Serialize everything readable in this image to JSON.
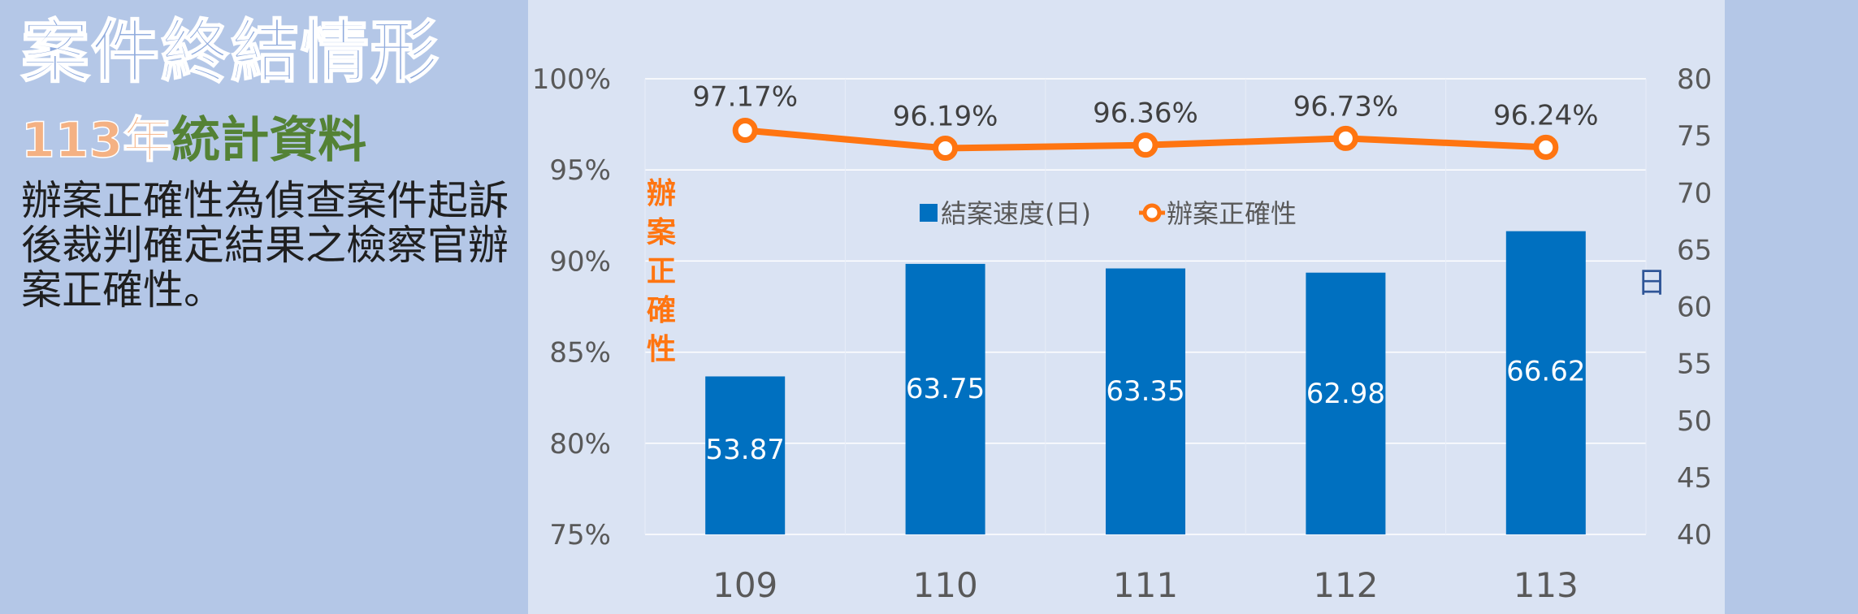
{
  "page": {
    "title": "案件終結情形",
    "subtitle_year": "113年",
    "subtitle_rest": "統計資料",
    "description": "辦案正確性為偵查案件起訴後裁判確定結果之檢察官辦案正確性。"
  },
  "colors": {
    "bar": "#0070c0",
    "line": "#ff7511",
    "title": "#8faadc",
    "subtitle_year": "#f4b183",
    "subtitle_rest": "#548235",
    "left_axis_title": "#ff7511",
    "right_axis_title": "#2f5597"
  },
  "chart_data": {
    "type": "bar",
    "categories": [
      "109",
      "110",
      "111",
      "112",
      "113"
    ],
    "series": [
      {
        "name": "結案速度(日)",
        "type": "bar",
        "axis": "right",
        "values": [
          53.87,
          63.75,
          63.35,
          62.98,
          66.62
        ],
        "labels": [
          "53.87",
          "63.75",
          "63.35",
          "62.98",
          "66.62"
        ]
      },
      {
        "name": "辦案正確性",
        "type": "line",
        "axis": "left",
        "values": [
          97.17,
          96.19,
          96.36,
          96.73,
          96.24
        ],
        "labels": [
          "97.17%",
          "96.19%",
          "96.36%",
          "96.73%",
          "96.24%"
        ]
      }
    ],
    "y_left": {
      "label": "辦案正確性",
      "range": [
        75,
        100
      ],
      "ticks": [
        "75%",
        "80%",
        "85%",
        "90%",
        "95%",
        "100%"
      ]
    },
    "y_right": {
      "label": "日",
      "range": [
        40,
        80
      ],
      "ticks": [
        "40",
        "45",
        "50",
        "55",
        "60",
        "65",
        "70",
        "75",
        "80"
      ]
    },
    "grid": true,
    "legend_position": "upper-center"
  }
}
